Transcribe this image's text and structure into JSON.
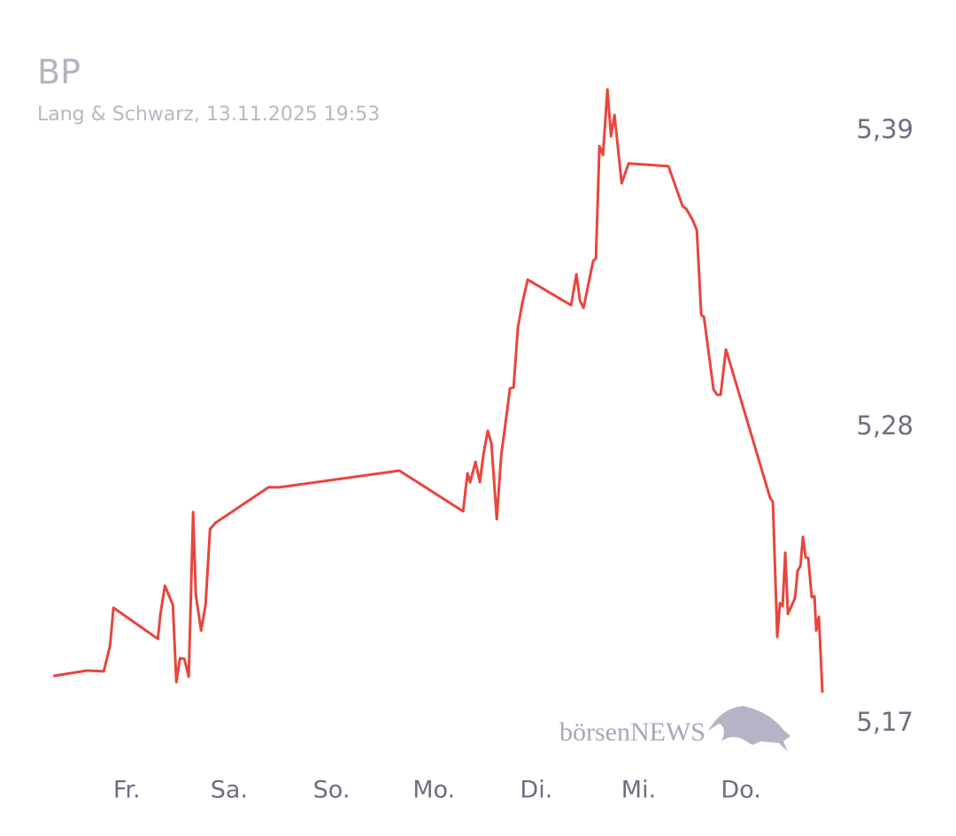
{
  "chart_data": {
    "type": "line",
    "title": "BP",
    "subtitle": "Lang & Schwarz, 13.11.2025 19:53",
    "watermark": "börsenNEWS",
    "x": [
      0.282,
      0.611,
      0.775,
      0.836,
      0.87,
      1.303,
      1.329,
      1.372,
      1.45,
      1.484,
      1.519,
      1.562,
      1.605,
      1.648,
      1.674,
      1.726,
      1.769,
      1.813,
      1.865,
      2.383,
      2.487,
      3.663,
      4.285,
      4.328,
      4.354,
      4.406,
      4.449,
      4.484,
      4.527,
      4.562,
      4.614,
      4.657,
      4.718,
      4.743,
      4.778,
      4.821,
      4.865,
      4.916,
      5.34,
      5.392,
      5.427,
      5.461,
      5.556,
      5.582,
      5.617,
      5.652,
      5.695,
      5.73,
      5.764,
      5.834,
      5.902,
      6.291,
      6.429,
      6.464,
      6.524,
      6.568,
      6.611,
      6.637,
      6.697,
      6.731,
      6.766,
      6.801,
      6.853,
      7.285,
      7.311,
      7.354,
      7.38,
      7.406,
      7.432,
      7.458,
      7.527,
      7.553,
      7.58,
      7.605,
      7.631,
      7.657,
      7.691,
      7.717,
      7.735,
      7.761,
      7.795
    ],
    "series": [
      {
        "name": "BP",
        "color": "#e8453c",
        "values": [
          5.1877,
          5.1897,
          5.1894,
          5.1989,
          5.213,
          5.2015,
          5.2107,
          5.2212,
          5.214,
          5.1854,
          5.1943,
          5.194,
          5.1874,
          5.2485,
          5.2179,
          5.2045,
          5.214,
          5.2422,
          5.2445,
          5.2577,
          5.2577,
          5.2639,
          5.2488,
          5.2629,
          5.2596,
          5.2672,
          5.2596,
          5.2701,
          5.2787,
          5.2738,
          5.2459,
          5.2695,
          5.2869,
          5.2944,
          5.2948,
          5.3171,
          5.3263,
          5.3348,
          5.3253,
          5.3368,
          5.327,
          5.3243,
          5.3417,
          5.3427,
          5.3844,
          5.3811,
          5.4054,
          5.388,
          5.3959,
          5.3706,
          5.3779,
          5.3769,
          5.3621,
          5.3611,
          5.3572,
          5.3532,
          5.3217,
          5.321,
          5.304,
          5.2941,
          5.2921,
          5.2921,
          5.3089,
          5.2537,
          5.2524,
          5.2022,
          5.2147,
          5.2137,
          5.2334,
          5.2107,
          5.2166,
          5.2268,
          5.2284,
          5.2393,
          5.2317,
          5.2314,
          5.217,
          5.2173,
          5.2045,
          5.2097,
          5.1815
        ]
      }
    ],
    "xlim": [
      0.28,
      7.95
    ],
    "xticks": [
      {
        "value": 1,
        "label": "Fr."
      },
      {
        "value": 2,
        "label": "Sa."
      },
      {
        "value": 3,
        "label": "So."
      },
      {
        "value": 4,
        "label": "Mo."
      },
      {
        "value": 5,
        "label": "Di."
      },
      {
        "value": 6,
        "label": "Mi."
      },
      {
        "value": 7,
        "label": "Do."
      }
    ],
    "ylim": [
      5.17,
      5.39
    ],
    "yticks": [
      {
        "value": 5.17,
        "label": "5,17"
      },
      {
        "value": 5.28,
        "label": "5,28"
      },
      {
        "value": 5.39,
        "label": "5,39"
      }
    ]
  }
}
